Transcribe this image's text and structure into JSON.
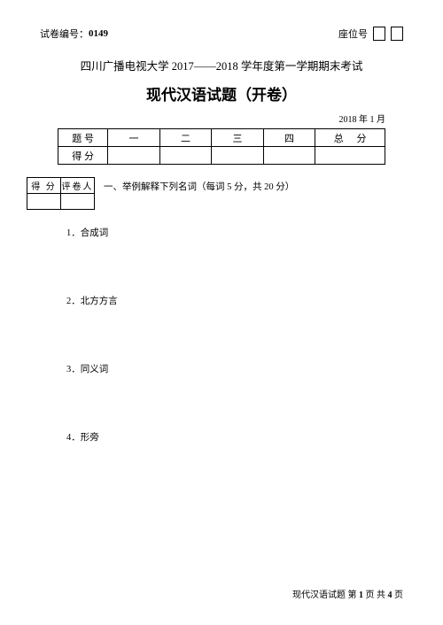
{
  "header": {
    "paper_label": "试卷编号：",
    "paper_number": "0149",
    "seat_label": "座位号"
  },
  "university_line": "四川广播电视大学 2017——2018 学年度第一学期期末考试",
  "title": "现代汉语试题（开卷）",
  "date": "2018 年 1 月",
  "score_table": {
    "row1": [
      "题 号",
      "一",
      "二",
      "三",
      "四",
      "总 分"
    ],
    "row2_label": "得 分"
  },
  "mini_table": {
    "h1": "得 分",
    "h2": "评卷人"
  },
  "section1_title": "一、举例解释下列名词（每词 5 分，共 20 分）",
  "questions": {
    "q1": "1．合成词",
    "q2": "2．北方方言",
    "q3": "3．同义词",
    "q4": "4．形旁"
  },
  "footer": {
    "prefix": "现代汉语试题  第 ",
    "page": "1",
    "mid": " 页 共 ",
    "total": "4",
    "suffix": " 页"
  }
}
